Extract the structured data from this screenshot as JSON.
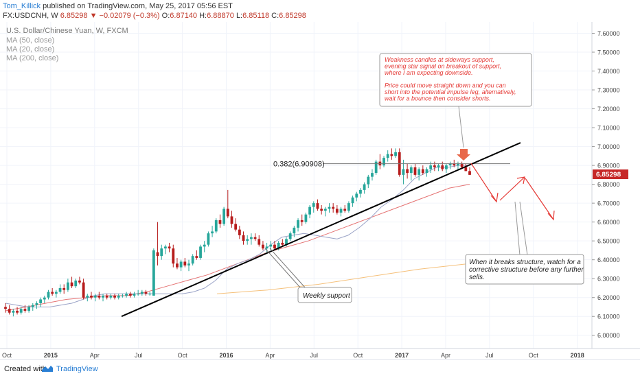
{
  "header": {
    "user": "Tom_Killick",
    "published": "published on TradingView.com, May 25, 2017 05:56 EST",
    "symbol": "FX:USDCNH, W",
    "last": "6.85298",
    "change": "−0.02079 (−0.3%)",
    "o_label": "O:",
    "o": "6.87140",
    "h_label": "H:",
    "h": "6.88870",
    "l_label": "L:",
    "l": "6.85118",
    "c_label": "C:",
    "c": "6.85298"
  },
  "legend": {
    "title": "U.S. Dollar/Chinese Yuan, W, FXCM",
    "ma50": "MA (50, close)",
    "ma20": "MA (20, close)",
    "ma200": "MA (200, close)"
  },
  "colors": {
    "up": "#26a69a",
    "down": "#b71c1c",
    "ma20": "#9aa3c7",
    "ma50": "#e57373",
    "ma200": "#f5c07a",
    "annotation_text": "#e53935",
    "arrow": "#e53935",
    "price_tag": "#c62828"
  },
  "chart_data": {
    "type": "candlestick",
    "ylim": [
      5.93,
      7.66
    ],
    "y_ticks": [
      "6.00000",
      "6.10000",
      "6.20000",
      "6.30000",
      "6.40000",
      "6.50000",
      "6.60000",
      "6.70000",
      "6.80000",
      "6.90000",
      "7.00000",
      "7.10000",
      "7.20000",
      "7.30000",
      "7.40000",
      "7.50000",
      "7.60000"
    ],
    "x_ticks": [
      "Oct",
      "2015",
      "Apr",
      "Jul",
      "Oct",
      "2016",
      "Apr",
      "Jul",
      "Oct",
      "2017",
      "Apr",
      "Jul",
      "Oct",
      "2018"
    ],
    "last_price_label": "6.85298",
    "fib_label": "0.382(6.90908)",
    "fib_level": 6.90908,
    "candles": [
      [
        6.15,
        6.17,
        6.12,
        6.14
      ],
      [
        6.14,
        6.16,
        6.11,
        6.12
      ],
      [
        6.12,
        6.14,
        6.1,
        6.13
      ],
      [
        6.13,
        6.15,
        6.11,
        6.12
      ],
      [
        6.12,
        6.15,
        6.11,
        6.14
      ],
      [
        6.14,
        6.16,
        6.12,
        6.13
      ],
      [
        6.13,
        6.16,
        6.12,
        6.15
      ],
      [
        6.15,
        6.17,
        6.13,
        6.16
      ],
      [
        6.16,
        6.18,
        6.14,
        6.17
      ],
      [
        6.17,
        6.2,
        6.15,
        6.19
      ],
      [
        6.19,
        6.21,
        6.17,
        6.2
      ],
      [
        6.2,
        6.24,
        6.19,
        6.23
      ],
      [
        6.23,
        6.25,
        6.21,
        6.22
      ],
      [
        6.22,
        6.24,
        6.2,
        6.23
      ],
      [
        6.23,
        6.27,
        6.22,
        6.25
      ],
      [
        6.25,
        6.27,
        6.22,
        6.24
      ],
      [
        6.24,
        6.3,
        6.23,
        6.28
      ],
      [
        6.28,
        6.31,
        6.25,
        6.26
      ],
      [
        6.26,
        6.3,
        6.25,
        6.29
      ],
      [
        6.29,
        6.31,
        6.27,
        6.28
      ],
      [
        6.28,
        6.3,
        6.19,
        6.2
      ],
      [
        6.2,
        6.22,
        6.18,
        6.21
      ],
      [
        6.21,
        6.23,
        6.19,
        6.2
      ],
      [
        6.2,
        6.22,
        6.18,
        6.21
      ],
      [
        6.21,
        6.23,
        6.19,
        6.2
      ],
      [
        6.2,
        6.22,
        6.18,
        6.21
      ],
      [
        6.21,
        6.22,
        6.19,
        6.2
      ],
      [
        6.2,
        6.22,
        6.19,
        6.21
      ],
      [
        6.21,
        6.22,
        6.19,
        6.2
      ],
      [
        6.2,
        6.22,
        6.19,
        6.21
      ],
      [
        6.21,
        6.22,
        6.2,
        6.21
      ],
      [
        6.21,
        6.23,
        6.2,
        6.22
      ],
      [
        6.22,
        6.23,
        6.2,
        6.21
      ],
      [
        6.21,
        6.23,
        6.2,
        6.22
      ],
      [
        6.22,
        6.24,
        6.21,
        6.22
      ],
      [
        6.22,
        6.24,
        6.21,
        6.23
      ],
      [
        6.23,
        6.24,
        6.21,
        6.22
      ],
      [
        6.22,
        6.23,
        6.21,
        6.22
      ],
      [
        6.21,
        6.46,
        6.21,
        6.45
      ],
      [
        6.44,
        6.6,
        6.37,
        6.42
      ],
      [
        6.42,
        6.48,
        6.4,
        6.46
      ],
      [
        6.46,
        6.48,
        6.43,
        6.47
      ],
      [
        6.47,
        6.49,
        6.44,
        6.46
      ],
      [
        6.46,
        6.48,
        6.36,
        6.38
      ],
      [
        6.38,
        6.41,
        6.35,
        6.36
      ],
      [
        6.36,
        6.4,
        6.34,
        6.39
      ],
      [
        6.39,
        6.41,
        6.36,
        6.37
      ],
      [
        6.37,
        6.4,
        6.34,
        6.38
      ],
      [
        6.38,
        6.43,
        6.37,
        6.42
      ],
      [
        6.42,
        6.45,
        6.4,
        6.41
      ],
      [
        6.41,
        6.48,
        6.4,
        6.47
      ],
      [
        6.47,
        6.5,
        6.44,
        6.48
      ],
      [
        6.48,
        6.55,
        6.47,
        6.54
      ],
      [
        6.54,
        6.58,
        6.52,
        6.55
      ],
      [
        6.55,
        6.62,
        6.54,
        6.61
      ],
      [
        6.61,
        6.64,
        6.57,
        6.59
      ],
      [
        6.59,
        6.68,
        6.58,
        6.67
      ],
      [
        6.67,
        6.77,
        6.62,
        6.63
      ],
      [
        6.63,
        6.66,
        6.57,
        6.59
      ],
      [
        6.59,
        6.62,
        6.55,
        6.56
      ],
      [
        6.56,
        6.58,
        6.51,
        6.53
      ],
      [
        6.53,
        6.55,
        6.48,
        6.5
      ],
      [
        6.5,
        6.53,
        6.48,
        6.51
      ],
      [
        6.51,
        6.54,
        6.48,
        6.52
      ],
      [
        6.52,
        6.54,
        6.5,
        6.51
      ],
      [
        6.51,
        6.53,
        6.47,
        6.48
      ],
      [
        6.48,
        6.5,
        6.45,
        6.46
      ],
      [
        6.46,
        6.49,
        6.44,
        6.47
      ],
      [
        6.47,
        6.5,
        6.45,
        6.48
      ],
      [
        6.48,
        6.5,
        6.45,
        6.46
      ],
      [
        6.46,
        6.5,
        6.45,
        6.49
      ],
      [
        6.49,
        6.51,
        6.47,
        6.48
      ],
      [
        6.48,
        6.52,
        6.47,
        6.51
      ],
      [
        6.51,
        6.55,
        6.5,
        6.54
      ],
      [
        6.54,
        6.58,
        6.52,
        6.57
      ],
      [
        6.57,
        6.62,
        6.55,
        6.61
      ],
      [
        6.61,
        6.64,
        6.58,
        6.6
      ],
      [
        6.6,
        6.65,
        6.59,
        6.64
      ],
      [
        6.64,
        6.69,
        6.62,
        6.68
      ],
      [
        6.68,
        6.71,
        6.65,
        6.7
      ],
      [
        6.7,
        6.72,
        6.66,
        6.67
      ],
      [
        6.67,
        6.69,
        6.64,
        6.66
      ],
      [
        6.66,
        6.68,
        6.63,
        6.67
      ],
      [
        6.67,
        6.7,
        6.65,
        6.68
      ],
      [
        6.68,
        6.7,
        6.65,
        6.67
      ],
      [
        6.67,
        6.69,
        6.64,
        6.65
      ],
      [
        6.65,
        6.68,
        6.63,
        6.67
      ],
      [
        6.67,
        6.69,
        6.65,
        6.66
      ],
      [
        6.66,
        6.71,
        6.65,
        6.7
      ],
      [
        6.7,
        6.74,
        6.68,
        6.73
      ],
      [
        6.73,
        6.76,
        6.71,
        6.75
      ],
      [
        6.75,
        6.78,
        6.73,
        6.77
      ],
      [
        6.77,
        6.81,
        6.75,
        6.8
      ],
      [
        6.8,
        6.85,
        6.78,
        6.84
      ],
      [
        6.84,
        6.88,
        6.82,
        6.86
      ],
      [
        6.86,
        6.93,
        6.85,
        6.92
      ],
      [
        6.92,
        6.96,
        6.88,
        6.9
      ],
      [
        6.9,
        6.95,
        6.89,
        6.94
      ],
      [
        6.94,
        6.98,
        6.92,
        6.96
      ],
      [
        6.96,
        6.99,
        6.93,
        6.95
      ],
      [
        6.95,
        6.99,
        6.94,
        6.97
      ],
      [
        6.97,
        6.99,
        6.84,
        6.85
      ],
      [
        6.85,
        6.93,
        6.8,
        6.88
      ],
      [
        6.88,
        6.91,
        6.83,
        6.86
      ],
      [
        6.86,
        6.9,
        6.82,
        6.89
      ],
      [
        6.89,
        6.91,
        6.84,
        6.85
      ],
      [
        6.85,
        6.89,
        6.82,
        6.88
      ],
      [
        6.88,
        6.9,
        6.85,
        6.86
      ],
      [
        6.86,
        6.89,
        6.84,
        6.88
      ],
      [
        6.88,
        6.92,
        6.86,
        6.9
      ],
      [
        6.9,
        6.92,
        6.87,
        6.89
      ],
      [
        6.89,
        6.91,
        6.87,
        6.9
      ],
      [
        6.9,
        6.92,
        6.87,
        6.88
      ],
      [
        6.88,
        6.91,
        6.86,
        6.9
      ],
      [
        6.9,
        6.92,
        6.88,
        6.91
      ],
      [
        6.91,
        6.93,
        6.89,
        6.9
      ],
      [
        6.9,
        6.92,
        6.88,
        6.91
      ],
      [
        6.91,
        6.92,
        6.88,
        6.89
      ],
      [
        6.89,
        6.91,
        6.87,
        6.87
      ],
      [
        6.87,
        6.89,
        6.85,
        6.85
      ]
    ],
    "ma20": [
      6.17,
      6.16,
      6.15,
      6.15,
      6.15,
      6.16,
      6.17,
      6.19,
      6.21,
      6.22,
      6.22,
      6.22,
      6.22,
      6.22,
      6.22,
      6.22,
      6.22,
      6.23,
      6.25,
      6.29,
      6.35,
      6.38,
      6.4,
      6.43,
      6.48,
      6.52,
      6.53,
      6.54,
      6.53,
      6.52,
      6.51,
      6.53,
      6.57,
      6.62,
      6.68,
      6.72,
      6.77,
      6.83,
      6.86,
      6.89,
      6.89,
      6.9,
      6.9
    ],
    "ma50": [
      6.13,
      6.15,
      6.17,
      6.19,
      6.2,
      6.21,
      6.21,
      6.23,
      6.26,
      6.29,
      6.32,
      6.36,
      6.4,
      6.44,
      6.47,
      6.5,
      6.54,
      6.58,
      6.62,
      6.66,
      6.7,
      6.74,
      6.78,
      6.8
    ],
    "ma200": [
      6.22,
      6.24,
      6.27,
      6.31,
      6.35,
      6.38
    ],
    "support_line": [
      6.1,
      7.02
    ],
    "annotations": {
      "top_box": [
        "Weakness candles at sideways support,",
        "evening star signal on breakout of support,",
        "where I am expecting downside.",
        "",
        "Price could move straight down and you can",
        "short into the potential impulse leg, alternatively,",
        "wait for a bounce then consider shorts."
      ],
      "support_label": "Weekly support",
      "bottom_box": [
        "When it breaks structure, watch for a",
        "corrective structure before any further",
        "sells."
      ]
    }
  },
  "footer": {
    "created": "Created with",
    "brand": "TradingView"
  }
}
